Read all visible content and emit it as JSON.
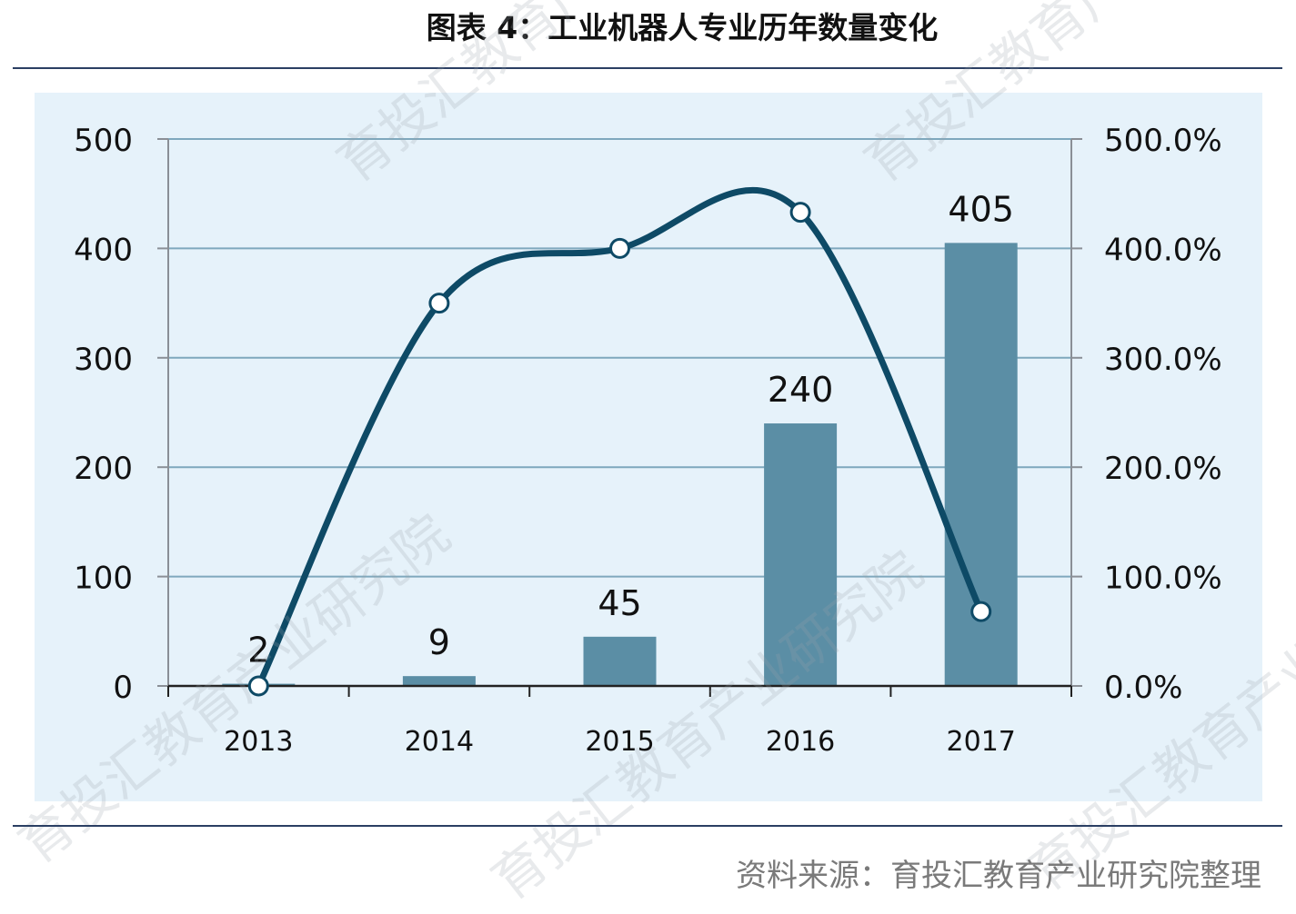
{
  "title": "图表 4：工业机器人专业历年数量变化",
  "source": "资料来源：育投汇教育产业研究院整理",
  "watermark_text": "育投汇教育产业研究院",
  "colors": {
    "bar": "#5b8ea5",
    "line": "#0e4a66",
    "gridline": "#7fa8bd",
    "axis": "#8a8f96",
    "panel": "#e6f2fa",
    "rule": "#2b3f63"
  },
  "chart_data": {
    "type": "bar+line",
    "categories": [
      "2013",
      "2014",
      "2015",
      "2016",
      "2017"
    ],
    "series": [
      {
        "type": "bar",
        "axis": "left",
        "values": [
          2,
          9,
          45,
          240,
          405
        ],
        "data_labels": [
          "2",
          "9",
          "45",
          "240",
          "405"
        ]
      },
      {
        "type": "line",
        "axis": "right",
        "smooth": true,
        "values": [
          0,
          350,
          400,
          433,
          68
        ]
      }
    ],
    "ylim_left": [
      0,
      500
    ],
    "yticks_left": [
      "0",
      "100",
      "200",
      "300",
      "400",
      "500"
    ],
    "ylim_right": [
      0,
      500
    ],
    "yticks_right": [
      "0.0%",
      "100.0%",
      "200.0%",
      "300.0%",
      "400.0%",
      "500.0%"
    ],
    "grid": true,
    "legend": "none"
  }
}
